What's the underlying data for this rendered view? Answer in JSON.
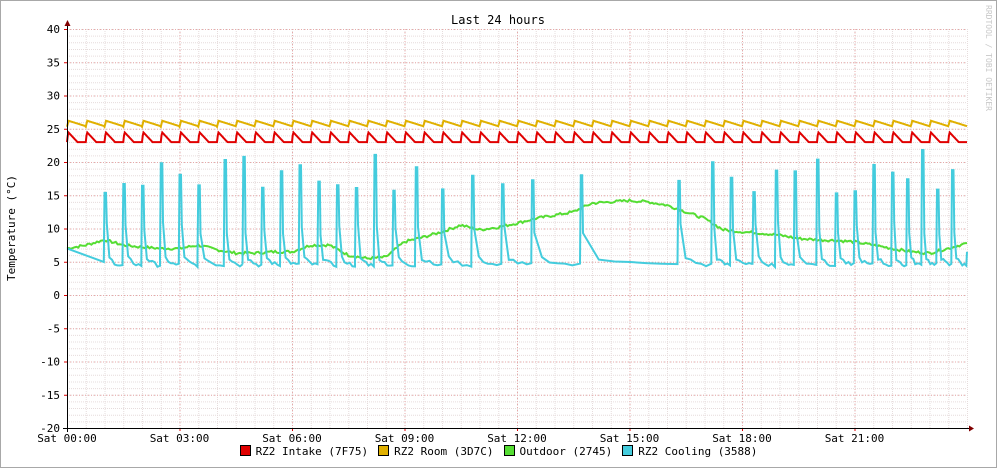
{
  "chart_data": {
    "type": "line",
    "title": "Last 24 hours",
    "ylabel": "Temperature (°C)",
    "watermark": "RRDTOOL / TOBI OETIKER",
    "ylim": [
      -20,
      40
    ],
    "yticks": [
      -20,
      -15,
      -10,
      -5,
      0,
      5,
      10,
      15,
      20,
      25,
      30,
      35,
      40
    ],
    "xlim_hours": [
      0,
      24
    ],
    "xticks": [
      {
        "hour": 0,
        "label": "Sat 00:00"
      },
      {
        "hour": 3,
        "label": "Sat 03:00"
      },
      {
        "hour": 6,
        "label": "Sat 06:00"
      },
      {
        "hour": 9,
        "label": "Sat 09:00"
      },
      {
        "hour": 12,
        "label": "Sat 12:00"
      },
      {
        "hour": 15,
        "label": "Sat 15:00"
      },
      {
        "hour": 18,
        "label": "Sat 18:00"
      },
      {
        "hour": 21,
        "label": "Sat 21:00"
      }
    ],
    "grid": true,
    "legend_position": "bottom",
    "series": [
      {
        "name": "RZ2 Intake (7F75)",
        "color": "#e00000",
        "base": 23.0,
        "peak": 24.5,
        "approx_cycle_hours": 0.5
      },
      {
        "name": "RZ2 Room (3D7C)",
        "color": "#e0b000",
        "base": 25.3,
        "peak": 26.2,
        "approx_cycle_hours": 0.5
      },
      {
        "name": "Outdoor (2745)",
        "color": "#55dd33",
        "x": [
          0,
          0.5,
          1,
          1.5,
          2,
          2.5,
          3,
          3.5,
          4,
          4.5,
          5,
          5.5,
          6,
          6.5,
          7,
          7.5,
          8,
          8.5,
          9,
          9.5,
          10,
          10.5,
          11,
          11.5,
          12,
          12.5,
          13,
          13.5,
          14,
          14.5,
          15,
          15.5,
          16,
          16.5,
          17,
          17.5,
          18,
          18.5,
          19,
          19.5,
          20,
          20.5,
          21,
          21.5,
          22,
          22.5,
          23,
          23.5,
          24
        ],
        "y": [
          7,
          7.5,
          8.3,
          7.5,
          7.2,
          7,
          7,
          7.5,
          6.8,
          6.3,
          6.3,
          6.5,
          6.5,
          7.5,
          7.5,
          6,
          5.5,
          5.7,
          8,
          8.7,
          9.5,
          10.5,
          9.8,
          10.2,
          10.8,
          11.5,
          12,
          12.5,
          13.8,
          14,
          14.2,
          14,
          13.5,
          12.5,
          11.5,
          9.8,
          9.5,
          9.3,
          9.0,
          8.5,
          8.3,
          8.2,
          8.0,
          7.5,
          7.0,
          6.5,
          6.3,
          7.0,
          7.8
        ]
      },
      {
        "name": "RZ2 Cooling (3588)",
        "color": "#44ccdd",
        "base": 4.5,
        "peak": 22.0,
        "cycles_starting_hours": [
          1.0,
          1.5,
          2.0,
          2.5,
          3.0,
          3.5,
          4.2,
          4.7,
          5.2,
          5.7,
          6.2,
          6.7,
          7.2,
          7.7,
          8.2,
          8.7,
          9.3,
          10.0,
          10.8,
          11.6,
          12.4,
          13.7,
          16.3,
          17.2,
          17.7,
          18.3,
          18.9,
          19.4,
          20.0,
          20.5,
          21.0,
          21.5,
          22.0,
          22.4,
          22.8,
          23.2,
          23.6
        ]
      }
    ]
  }
}
